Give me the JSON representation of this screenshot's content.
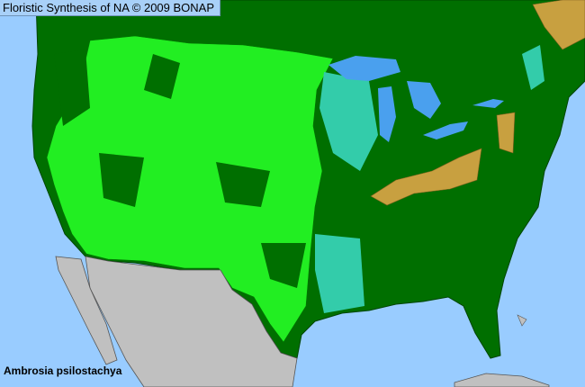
{
  "header": {
    "title": "Floristic Synthesis of NA © 2009 BONAP"
  },
  "species": "Ambrosia psilostachya",
  "colors": {
    "ocean": "#99ccff",
    "land_other": "#006f00",
    "present_native": "#22ee22",
    "present_not_rare": "#33ccaa",
    "adventive": "#c8a040",
    "non_us": "#c0c0c0",
    "lakes": "#4aa0ee"
  }
}
